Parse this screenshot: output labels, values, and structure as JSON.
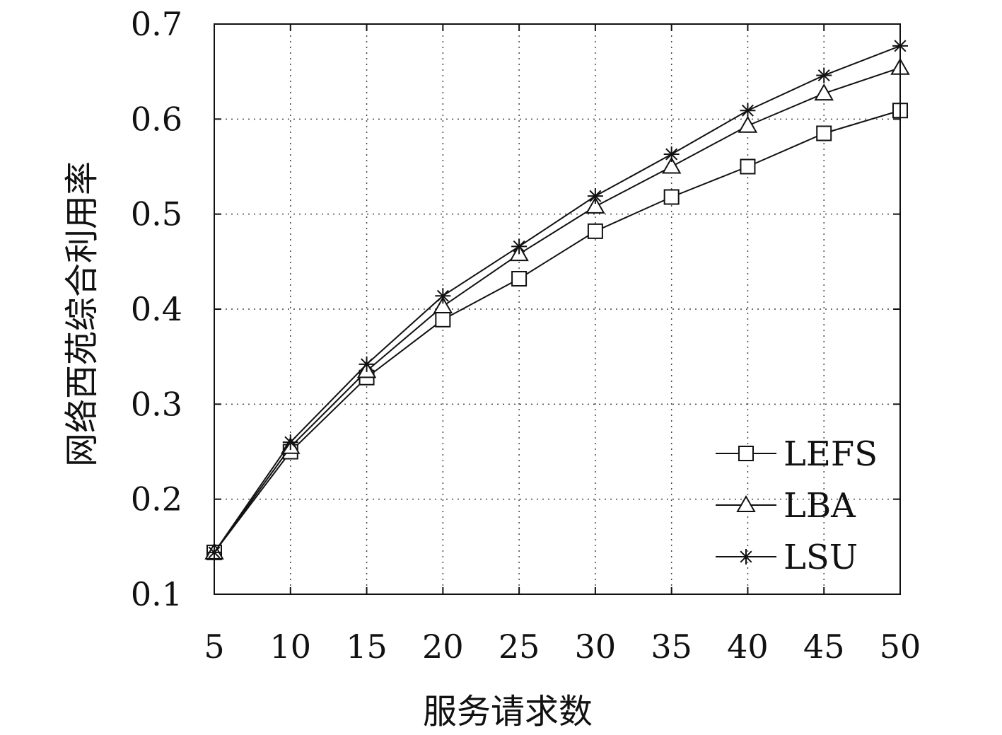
{
  "chart_data": {
    "type": "line",
    "title": "",
    "xlabel": "服务请求数",
    "ylabel": "网络西苑综合利用率",
    "x": [
      5,
      10,
      15,
      20,
      25,
      30,
      35,
      40,
      45,
      50
    ],
    "xticks": [
      "5",
      "10",
      "15",
      "20",
      "25",
      "30",
      "35",
      "40",
      "45",
      "50"
    ],
    "yticks": [
      "0.1",
      "0.2",
      "0.3",
      "0.4",
      "0.5",
      "0.6",
      "0.7"
    ],
    "xlim": [
      5,
      50
    ],
    "ylim": [
      0.1,
      0.7
    ],
    "grid": true,
    "legend_position": "bottom-right",
    "series": [
      {
        "name": "LEFS",
        "marker": "square",
        "values": [
          0.144,
          0.25,
          0.328,
          0.389,
          0.432,
          0.482,
          0.518,
          0.55,
          0.585,
          0.609
        ]
      },
      {
        "name": "LBA",
        "marker": "triangle",
        "values": [
          0.144,
          0.255,
          0.335,
          0.403,
          0.458,
          0.508,
          0.55,
          0.593,
          0.627,
          0.654
        ]
      },
      {
        "name": "LSU",
        "marker": "star",
        "values": [
          0.144,
          0.26,
          0.342,
          0.414,
          0.466,
          0.519,
          0.563,
          0.609,
          0.646,
          0.677
        ]
      }
    ],
    "line_color": "#111111"
  }
}
